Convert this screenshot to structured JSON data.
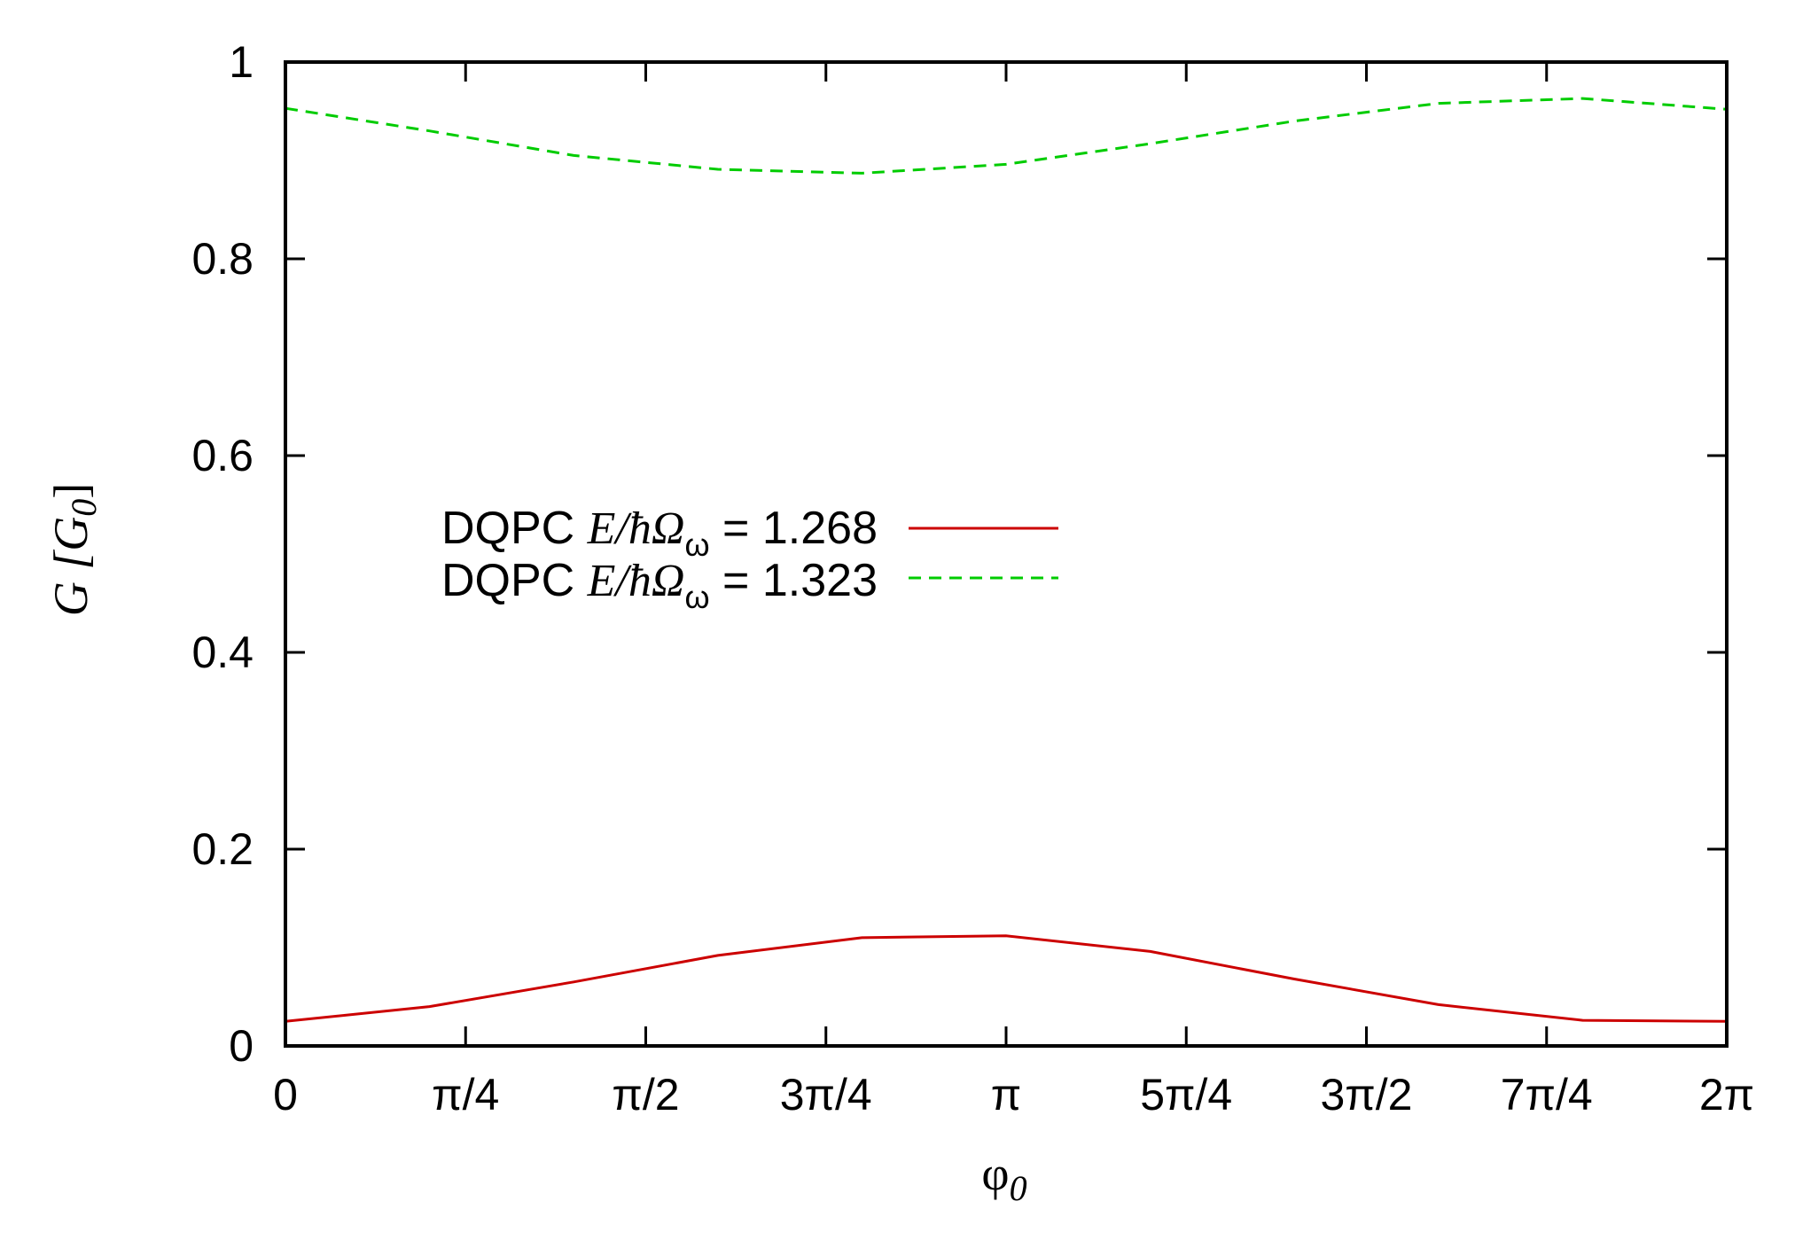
{
  "chart_data": {
    "type": "line",
    "title": "",
    "xlabel": "φ",
    "xlabel_sub": "0",
    "ylabel": "G [G",
    "ylabel_sub": "0",
    "ylabel_close": "]",
    "xlim": [
      0,
      6.283185
    ],
    "ylim": [
      0,
      1
    ],
    "grid": false,
    "legend_position": "center-left",
    "x_ticks": [
      {
        "value": 0,
        "label": "0"
      },
      {
        "value": 0.785398,
        "label": "π/4"
      },
      {
        "value": 1.570796,
        "label": "π/2"
      },
      {
        "value": 2.356194,
        "label": "3π/4"
      },
      {
        "value": 3.141593,
        "label": "π"
      },
      {
        "value": 3.926991,
        "label": "5π/4"
      },
      {
        "value": 4.712389,
        "label": "3π/2"
      },
      {
        "value": 5.497787,
        "label": "7π/4"
      },
      {
        "value": 6.283185,
        "label": "2π"
      }
    ],
    "y_ticks": [
      {
        "value": 0,
        "label": "0"
      },
      {
        "value": 0.2,
        "label": "0.2"
      },
      {
        "value": 0.4,
        "label": "0.4"
      },
      {
        "value": 0.6,
        "label": "0.6"
      },
      {
        "value": 0.8,
        "label": "0.8"
      },
      {
        "value": 1,
        "label": "1"
      }
    ],
    "series": [
      {
        "label_prefix": "DQPC ",
        "label_math": "E/",
        "label_hbar": "ħΩ",
        "label_sub": "ω",
        "label_value": " = 1.268",
        "color": "#cc0000",
        "dash": "solid",
        "x": [
          0,
          0.628,
          1.257,
          1.885,
          2.513,
          3.141,
          3.77,
          4.398,
          5.026,
          5.655,
          6.283
        ],
        "y": [
          0.025,
          0.04,
          0.065,
          0.092,
          0.11,
          0.112,
          0.096,
          0.068,
          0.042,
          0.026,
          0.025
        ]
      },
      {
        "label_prefix": "DQPC ",
        "label_math": "E/",
        "label_hbar": "ħΩ",
        "label_sub": "ω",
        "label_value": " = 1.323",
        "color": "#00cc00",
        "dash": "dashed",
        "x": [
          0,
          0.628,
          1.257,
          1.885,
          2.513,
          3.141,
          3.77,
          4.398,
          5.026,
          5.655,
          6.283
        ],
        "y": [
          0.953,
          0.93,
          0.905,
          0.891,
          0.887,
          0.896,
          0.917,
          0.94,
          0.958,
          0.963,
          0.952
        ]
      }
    ]
  }
}
